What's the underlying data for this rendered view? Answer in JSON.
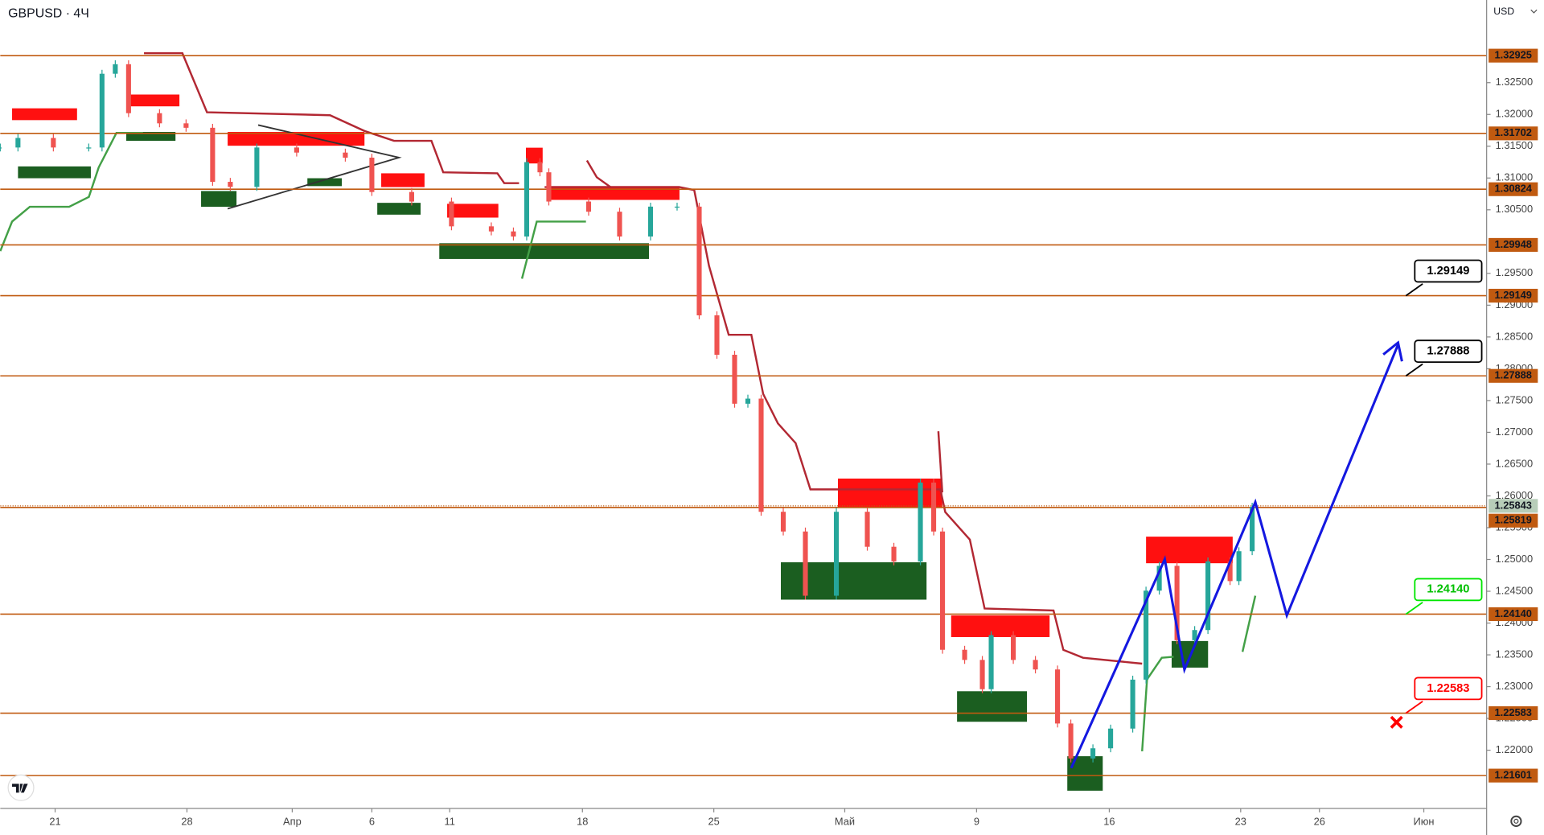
{
  "chart_data": {
    "type": "candlestick",
    "title": "GBPUSD · 4Ч",
    "currency": "USD",
    "x": [
      0,
      4,
      12,
      20,
      23,
      26,
      29,
      36,
      42,
      48,
      52,
      58,
      67,
      78,
      84,
      93,
      102,
      111,
      116,
      119,
      122,
      124,
      133,
      140,
      147,
      153,
      158,
      162,
      166,
      169,
      172,
      177,
      182,
      189,
      196,
      202,
      208,
      211,
      213,
      218,
      222,
      224,
      229,
      234,
      239,
      242,
      247,
      251,
      256,
      259,
      262,
      266,
      270,
      273,
      278,
      280,
      283
    ],
    "values": [
      1.3148,
      1.3163,
      1.3148,
      1.3148,
      1.3264,
      1.3279,
      1.3202,
      1.3186,
      1.3179,
      1.3094,
      1.3086,
      1.3148,
      1.314,
      1.3132,
      1.3078,
      1.3063,
      1.3024,
      1.3016,
      1.3008,
      1.3125,
      1.3109,
      1.3063,
      1.3047,
      1.3008,
      1.3055,
      1.3055,
      1.2884,
      1.2822,
      1.2745,
      1.2753,
      1.2575,
      1.2544,
      1.2443,
      1.2575,
      1.252,
      1.2497,
      1.2621,
      1.2544,
      1.2358,
      1.2342,
      1.2296,
      1.2381,
      1.2342,
      1.2327,
      1.2242,
      1.2187,
      1.2203,
      1.2234,
      1.2311,
      1.2451,
      1.249,
      1.2373,
      1.2389,
      1.2497,
      1.2466,
      1.2513,
      1.2583
    ],
    "up_color": "#26a69a",
    "down_color": "#ef5350",
    "xlim": [
      0,
      336
    ],
    "xticks": [
      {
        "value": 12.4,
        "label": "21"
      },
      {
        "value": 42.2,
        "label": "28"
      },
      {
        "value": 66,
        "label": "Апр"
      },
      {
        "value": 84,
        "label": "6"
      },
      {
        "value": 101.6,
        "label": "11"
      },
      {
        "value": 131.6,
        "label": "18"
      },
      {
        "value": 161.3,
        "label": "25"
      },
      {
        "value": 190.9,
        "label": "Май"
      },
      {
        "value": 220.7,
        "label": "9"
      },
      {
        "value": 250.7,
        "label": "16"
      },
      {
        "value": 280.4,
        "label": "23"
      },
      {
        "value": 298.2,
        "label": "26"
      },
      {
        "value": 321.8,
        "label": "Июн"
      }
    ],
    "ylim": [
      1.211,
      1.338
    ],
    "yticks": [
      {
        "value": 1.325,
        "label": "1.32500"
      },
      {
        "value": 1.32,
        "label": "1.32000"
      },
      {
        "value": 1.315,
        "label": "1.31500"
      },
      {
        "value": 1.31,
        "label": "1.31000"
      },
      {
        "value": 1.305,
        "label": "1.30500"
      },
      {
        "value": 1.295,
        "label": "1.29500"
      },
      {
        "value": 1.29,
        "label": "1.29000"
      },
      {
        "value": 1.285,
        "label": "1.28500"
      },
      {
        "value": 1.28,
        "label": "1.28000"
      },
      {
        "value": 1.275,
        "label": "1.27500"
      },
      {
        "value": 1.27,
        "label": "1.27000"
      },
      {
        "value": 1.265,
        "label": "1.26500"
      },
      {
        "value": 1.26,
        "label": "1.26000"
      },
      {
        "value": 1.255,
        "label": "1.25500"
      },
      {
        "value": 1.25,
        "label": "1.25000"
      },
      {
        "value": 1.245,
        "label": "1.24500"
      },
      {
        "value": 1.24,
        "label": "1.24000"
      },
      {
        "value": 1.235,
        "label": "1.23500"
      },
      {
        "value": 1.23,
        "label": "1.23000"
      },
      {
        "value": 1.225,
        "label": "1.22500"
      },
      {
        "value": 1.22,
        "label": "1.22000"
      }
    ],
    "level_color": "#c05a10",
    "levels": [
      1.32925,
      1.31702,
      1.30824,
      1.29948,
      1.29149,
      1.27888,
      1.25819,
      {
        "value": 1.2414,
        "label": "1.24140"
      },
      1.22583,
      1.21601
    ],
    "last_price": 1.25843,
    "last_price_color": "#b7cdb9",
    "callouts": [
      {
        "value": 1.29149,
        "color": "#000000"
      },
      {
        "value": 1.27888,
        "color": "#000000"
      },
      {
        "value": {
          "value": 1.2414,
          "label": "1.24140"
        },
        "color": "#00e600"
      },
      {
        "value": 1.22583,
        "color": "#ff0000"
      }
    ]
  }
}
